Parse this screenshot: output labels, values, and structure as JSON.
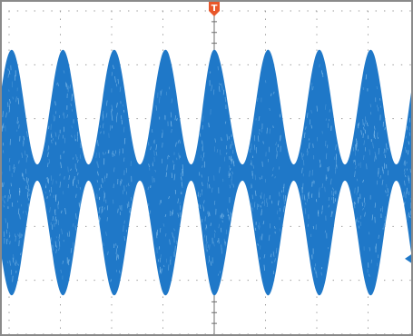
{
  "chart_data": {
    "type": "line",
    "title": "",
    "xlabel": "",
    "ylabel": "",
    "grid": true,
    "grid_divisions": {
      "x": 8,
      "y": 6
    },
    "xlim": [
      0,
      8
    ],
    "ylim": [
      -3,
      3
    ],
    "series": [
      {
        "color": "#1f78c8",
        "peak_envelope_positions_div": [
          0.05,
          1.05,
          2.05,
          3.05,
          4.0,
          5.05,
          6.05,
          7.05,
          8.05
        ],
        "null_envelope_positions_div": [
          -0.45,
          0.55,
          1.55,
          2.55,
          3.55,
          4.55,
          5.55,
          6.55,
          7.55
        ],
        "peak_amplitude_div": 2.28,
        "null_amplitude_div": 0.15
      }
    ],
    "trigger_marker": {
      "label": "T",
      "x_div": 4.0,
      "color": "#e8572a"
    },
    "level_marker": {
      "y_div": -1.6,
      "color": "#1f78c8"
    }
  },
  "colors": {
    "background": "#ffffff",
    "grid": "#9a9a9a",
    "border": "#8a8a8a",
    "waveform": "#1f78c8"
  }
}
